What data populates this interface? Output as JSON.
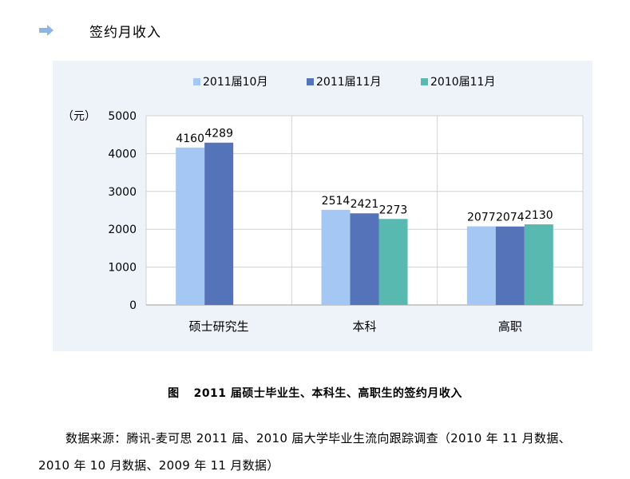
{
  "section": {
    "title": "签约月收入",
    "icon": "arrow-right-icon",
    "icon_color": "#8db4e2"
  },
  "chart_data": {
    "type": "bar",
    "unit_label": "（元）",
    "categories": [
      "硕士研究生",
      "本科",
      "高职"
    ],
    "series": [
      {
        "name": "2011届10月",
        "color": "#a4c7f3",
        "values": [
          4160,
          2514,
          2077
        ]
      },
      {
        "name": "2011届11月",
        "color": "#5573b8",
        "values": [
          4289,
          2421,
          2074
        ]
      },
      {
        "name": "2010届11月",
        "color": "#57b9b0",
        "values": [
          null,
          2273,
          2130
        ]
      }
    ],
    "ylim": [
      0,
      5000
    ],
    "yticks": [
      0,
      1000,
      2000,
      3000,
      4000,
      5000
    ],
    "legend_position": "top",
    "grid": true
  },
  "caption": {
    "fig_label": "图",
    "text": "2011 届硕士毕业生、本科生、高职生的签约月收入"
  },
  "source": {
    "text": "数据来源：腾讯-麦可思 2011 届、2010 届大学毕业生流向跟踪调查（2010 年 11 月数据、2010 年 10 月数据、2009 年 11 月数据）"
  }
}
